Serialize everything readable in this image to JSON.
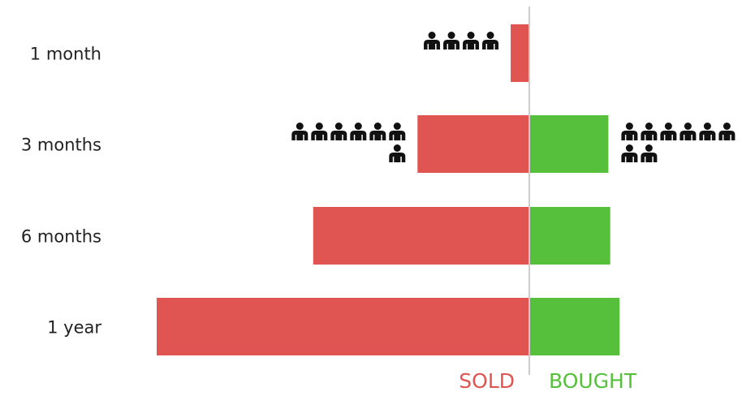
{
  "chart_data": {
    "type": "bar",
    "orientation": "horizontal",
    "diverging": true,
    "categories": [
      "1 month",
      "3 months",
      "6 months",
      "1 year"
    ],
    "series": [
      {
        "name": "SOLD",
        "values": [
          -1.0,
          -6.0,
          -11.6,
          -20.0
        ],
        "color": "#e05452"
      },
      {
        "name": "BOUGHT",
        "values": [
          0.0,
          4.2,
          4.3,
          4.8
        ],
        "color": "#56c03c"
      }
    ],
    "xlim": [
      -20.6,
      12
    ],
    "icon_counts": {
      "sold": [
        4,
        7,
        0,
        0
      ],
      "bought": [
        0,
        8,
        0,
        0
      ]
    },
    "icon": "person-icon",
    "legend": {
      "sold_label": "SOLD",
      "bought_label": "BOUGHT"
    },
    "divider_color": "#cccccc",
    "grid": false
  }
}
